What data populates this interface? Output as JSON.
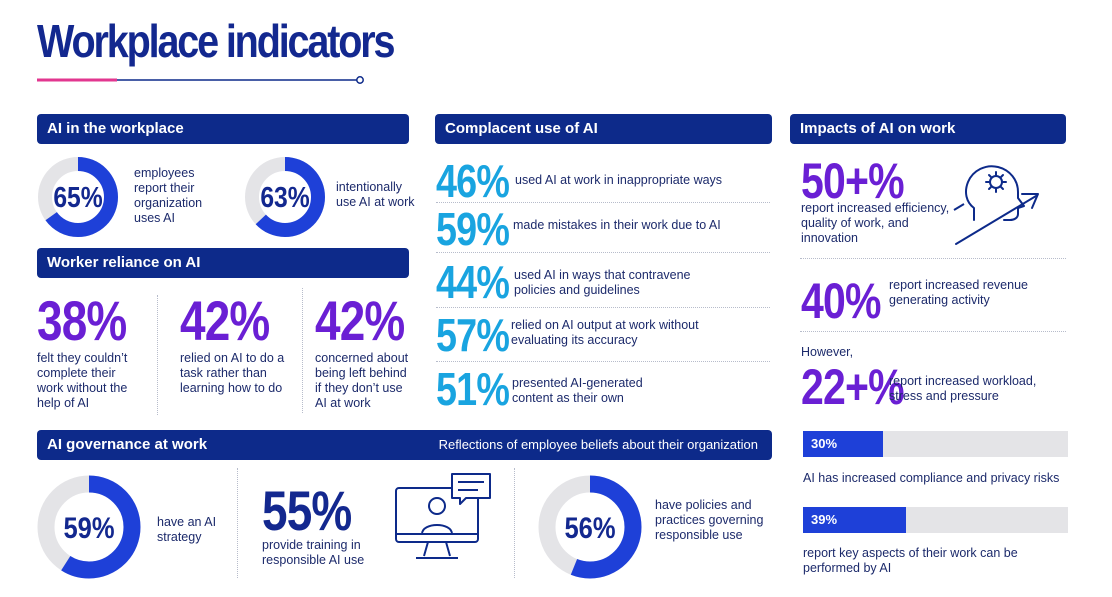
{
  "title": "Workplace indicators",
  "colors": {
    "navy": "#0d2a8a",
    "blue": "#1e40d8",
    "purple": "#6a1fd4",
    "cyan": "#19a4e0",
    "pink": "#e2368f",
    "track": "#e4e4e7"
  },
  "ai_workplace": {
    "header": "AI in the workplace",
    "items": [
      {
        "percent": "65%",
        "value": 65,
        "text": "employees report their organization uses AI"
      },
      {
        "percent": "63%",
        "value": 63,
        "text": "intentionally use AI at work"
      }
    ]
  },
  "reliance": {
    "header": "Worker reliance on AI",
    "items": [
      {
        "percent": "38%",
        "text": "felt they couldn’t complete their work without the help of AI"
      },
      {
        "percent": "42%",
        "text": "relied on AI to do a task rather than learning how to do"
      },
      {
        "percent": "42%",
        "text": "concerned about being left behind if they don’t use AI at work"
      }
    ]
  },
  "complacent": {
    "header": "Complacent use of AI",
    "items": [
      {
        "percent": "46%",
        "text": "used AI at work in inappropriate ways"
      },
      {
        "percent": "59%",
        "text": "made mistakes in their work due to AI"
      },
      {
        "percent": "44%",
        "text": "used AI in ways that contravene policies and guidelines"
      },
      {
        "percent": "57%",
        "text": "relied on AI output at work without evaluating its accuracy"
      },
      {
        "percent": "51%",
        "text": "presented AI-generated content as their own"
      }
    ]
  },
  "impacts": {
    "header": "Impacts of AI on work",
    "stat1": {
      "percent": "50+%",
      "text": "report increased efficiency, quality of work, and innovation"
    },
    "stat2": {
      "percent": "40%",
      "text": "report increased revenue generating activity"
    },
    "however": "However,",
    "stat3": {
      "percent": "22+%",
      "text": "report increased workload, stress and pressure"
    },
    "bars": [
      {
        "label": "30%",
        "value": 30,
        "text": "AI has increased compliance and privacy risks"
      },
      {
        "label": "39%",
        "value": 39,
        "text": "report key aspects of their work can be performed by AI"
      }
    ]
  },
  "governance": {
    "header": "AI governance at work",
    "subheader": "Reflections of employee beliefs about their organization",
    "ring1": {
      "percent": "59%",
      "value": 59,
      "text": "have an AI strategy"
    },
    "stat": {
      "percent": "55%",
      "text": "provide training in responsible AI use"
    },
    "ring2": {
      "percent": "56%",
      "value": 56,
      "text": "have policies and practices governing responsible use"
    }
  },
  "icons": [
    "head-gear-arrow-icon",
    "computer-user-chat-icon"
  ]
}
